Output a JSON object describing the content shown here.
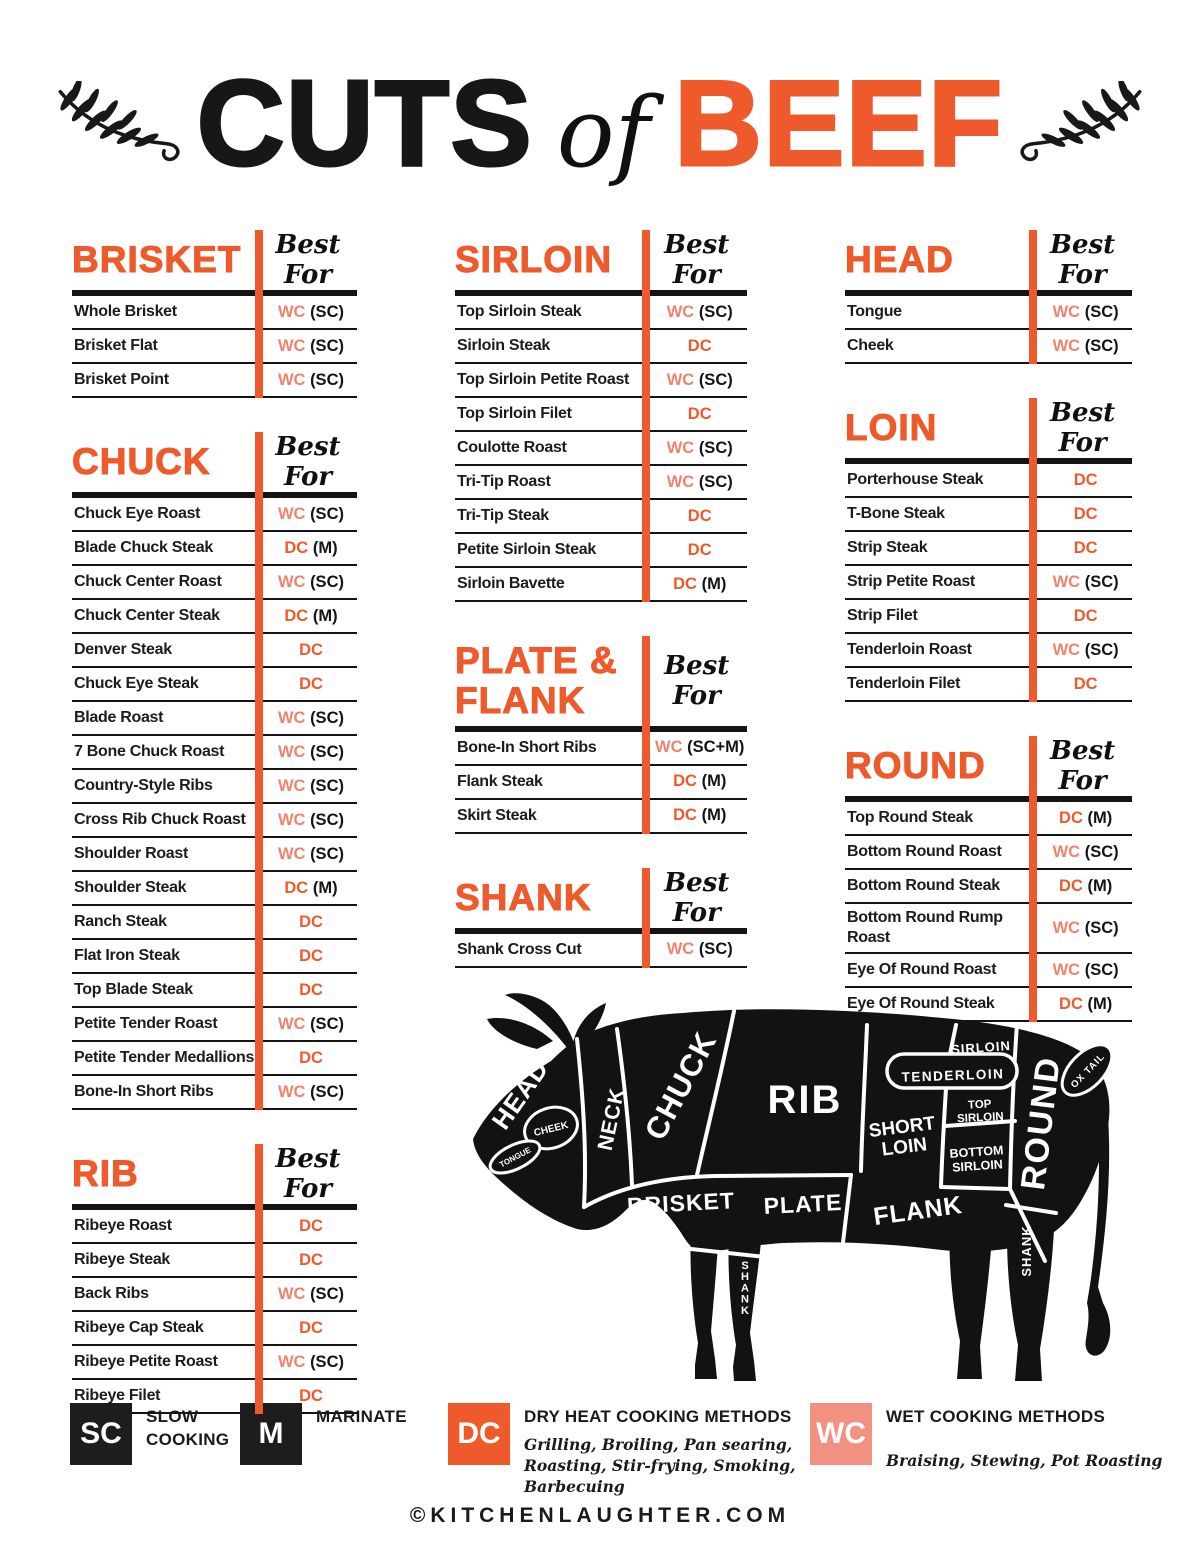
{
  "title": {
    "word1": "CUTS",
    "word2": "of",
    "word3": "BEEF"
  },
  "colors": {
    "orange": "#EE5A2B",
    "salmon": "#F0836E",
    "salmon_box": "#F29180",
    "ink": "#141414"
  },
  "columns": [
    [
      {
        "name": "BRISKET",
        "best_for": "Best For",
        "rows": [
          {
            "cut": "Whole Brisket",
            "m": "WC",
            "n": "(SC)"
          },
          {
            "cut": "Brisket Flat",
            "m": "WC",
            "n": "(SC)"
          },
          {
            "cut": "Brisket Point",
            "m": "WC",
            "n": "(SC)"
          }
        ]
      },
      {
        "name": "CHUCK",
        "best_for": "Best For",
        "rows": [
          {
            "cut": "Chuck Eye Roast",
            "m": "WC",
            "n": "(SC)"
          },
          {
            "cut": "Blade Chuck Steak",
            "m": "DC",
            "n": "(M)"
          },
          {
            "cut": "Chuck Center Roast",
            "m": "WC",
            "n": "(SC)"
          },
          {
            "cut": "Chuck Center Steak",
            "m": "DC",
            "n": "(M)"
          },
          {
            "cut": "Denver Steak",
            "m": "DC",
            "n": ""
          },
          {
            "cut": "Chuck Eye Steak",
            "m": "DC",
            "n": ""
          },
          {
            "cut": "Blade Roast",
            "m": "WC",
            "n": "(SC)"
          },
          {
            "cut": "7 Bone Chuck Roast",
            "m": "WC",
            "n": "(SC)"
          },
          {
            "cut": "Country-Style Ribs",
            "m": "WC",
            "n": "(SC)"
          },
          {
            "cut": "Cross Rib Chuck Roast",
            "m": "WC",
            "n": "(SC)"
          },
          {
            "cut": "Shoulder Roast",
            "m": "WC",
            "n": "(SC)"
          },
          {
            "cut": "Shoulder Steak",
            "m": "DC",
            "n": "(M)"
          },
          {
            "cut": "Ranch Steak",
            "m": "DC",
            "n": ""
          },
          {
            "cut": "Flat Iron Steak",
            "m": "DC",
            "n": ""
          },
          {
            "cut": "Top Blade Steak",
            "m": "DC",
            "n": ""
          },
          {
            "cut": "Petite Tender Roast",
            "m": "WC",
            "n": "(SC)"
          },
          {
            "cut": "Petite Tender Medallions",
            "m": "DC",
            "n": ""
          },
          {
            "cut": "Bone-In Short Ribs",
            "m": "WC",
            "n": "(SC)"
          }
        ]
      },
      {
        "name": "RIB",
        "best_for": "Best For",
        "rows": [
          {
            "cut": "Ribeye Roast",
            "m": "DC",
            "n": ""
          },
          {
            "cut": "Ribeye Steak",
            "m": "DC",
            "n": ""
          },
          {
            "cut": "Back Ribs",
            "m": "WC",
            "n": "(SC)"
          },
          {
            "cut": "Ribeye Cap Steak",
            "m": "DC",
            "n": ""
          },
          {
            "cut": "Ribeye Petite Roast",
            "m": "WC",
            "n": "(SC)"
          },
          {
            "cut": "Ribeye Filet",
            "m": "DC",
            "n": ""
          }
        ]
      }
    ],
    [
      {
        "name": "SIRLOIN",
        "best_for": "Best For",
        "rows": [
          {
            "cut": "Top Sirloin Steak",
            "m": "WC",
            "n": "(SC)"
          },
          {
            "cut": "Sirloin Steak",
            "m": "DC",
            "n": ""
          },
          {
            "cut": "Top Sirloin Petite Roast",
            "m": "WC",
            "n": "(SC)"
          },
          {
            "cut": "Top Sirloin Filet",
            "m": "DC",
            "n": ""
          },
          {
            "cut": "Coulotte Roast",
            "m": "WC",
            "n": "(SC)"
          },
          {
            "cut": "Tri-Tip Roast",
            "m": "WC",
            "n": "(SC)"
          },
          {
            "cut": "Tri-Tip Steak",
            "m": "DC",
            "n": ""
          },
          {
            "cut": "Petite Sirloin Steak",
            "m": "DC",
            "n": ""
          },
          {
            "cut": "Sirloin Bavette",
            "m": "DC",
            "n": "(M)"
          }
        ]
      },
      {
        "name": "PLATE & FLANK",
        "best_for": "Best For",
        "rows": [
          {
            "cut": "Bone-In Short Ribs",
            "m": "WC",
            "n": "(SC+M)"
          },
          {
            "cut": "Flank Steak",
            "m": "DC",
            "n": "(M)"
          },
          {
            "cut": "Skirt Steak",
            "m": "DC",
            "n": "(M)"
          }
        ]
      },
      {
        "name": "SHANK",
        "best_for": "Best For",
        "rows": [
          {
            "cut": "Shank Cross Cut",
            "m": "WC",
            "n": "(SC)"
          }
        ]
      }
    ],
    [
      {
        "name": "HEAD",
        "best_for": "Best For",
        "rows": [
          {
            "cut": "Tongue",
            "m": "WC",
            "n": "(SC)"
          },
          {
            "cut": "Cheek",
            "m": "WC",
            "n": "(SC)"
          }
        ]
      },
      {
        "name": "LOIN",
        "best_for": "Best For",
        "rows": [
          {
            "cut": "Porterhouse Steak",
            "m": "DC",
            "n": ""
          },
          {
            "cut": "T-Bone Steak",
            "m": "DC",
            "n": ""
          },
          {
            "cut": "Strip Steak",
            "m": "DC",
            "n": ""
          },
          {
            "cut": "Strip Petite Roast",
            "m": "WC",
            "n": "(SC)"
          },
          {
            "cut": "Strip Filet",
            "m": "DC",
            "n": ""
          },
          {
            "cut": "Tenderloin Roast",
            "m": "WC",
            "n": "(SC)"
          },
          {
            "cut": "Tenderloin Filet",
            "m": "DC",
            "n": ""
          }
        ]
      },
      {
        "name": "ROUND",
        "best_for": "Best For",
        "rows": [
          {
            "cut": "Top Round Steak",
            "m": "DC",
            "n": "(M)"
          },
          {
            "cut": "Bottom Round Roast",
            "m": "WC",
            "n": "(SC)"
          },
          {
            "cut": "Bottom Round Steak",
            "m": "DC",
            "n": "(M)"
          },
          {
            "cut": "Bottom Round Rump Roast",
            "m": "WC",
            "n": "(SC)",
            "wrap": true
          },
          {
            "cut": "Eye Of Round Roast",
            "m": "WC",
            "n": "(SC)"
          },
          {
            "cut": "Eye Of Round Steak",
            "m": "DC",
            "n": "(M)"
          }
        ]
      }
    ]
  ],
  "diagram": {
    "labels": {
      "head": "HEAD",
      "cheek": "CHEEK",
      "tongue": "TONGUE",
      "neck": "NECK",
      "chuck": "CHUCK",
      "rib": "RIB",
      "brisket": "BRISKET",
      "plate": "PLATE",
      "flank": "FLANK",
      "short_loin_l1": "SHORT",
      "short_loin_l2": "LOIN",
      "sirloin": "SIRLOIN",
      "tenderloin": "TENDERLOIN",
      "top_sirloin_l1": "TOP",
      "top_sirloin_l2": "SIRLOIN",
      "bottom_sirloin_l1": "BOTTOM",
      "bottom_sirloin_l2": "SIRLOIN",
      "round": "ROUND",
      "ox_tail": "OX TAIL",
      "shank_front": "SHANK",
      "shank_rear": "SHANK"
    }
  },
  "legend": [
    {
      "code": "SC",
      "label": "SLOW COOKING",
      "sub": ""
    },
    {
      "code": "M",
      "label": "MARINATE",
      "sub": ""
    },
    {
      "code": "DC",
      "label": "DRY HEAT COOKING METHODS",
      "sub": "Grilling, Broiling, Pan searing, Roasting, Stir-frying, Smoking, Barbecuing"
    },
    {
      "code": "WC",
      "label": "WET COOKING METHODS",
      "sub": "Braising, Stewing, Pot Roasting"
    }
  ],
  "footer": "©KITCHENLAUGHTER.COM"
}
